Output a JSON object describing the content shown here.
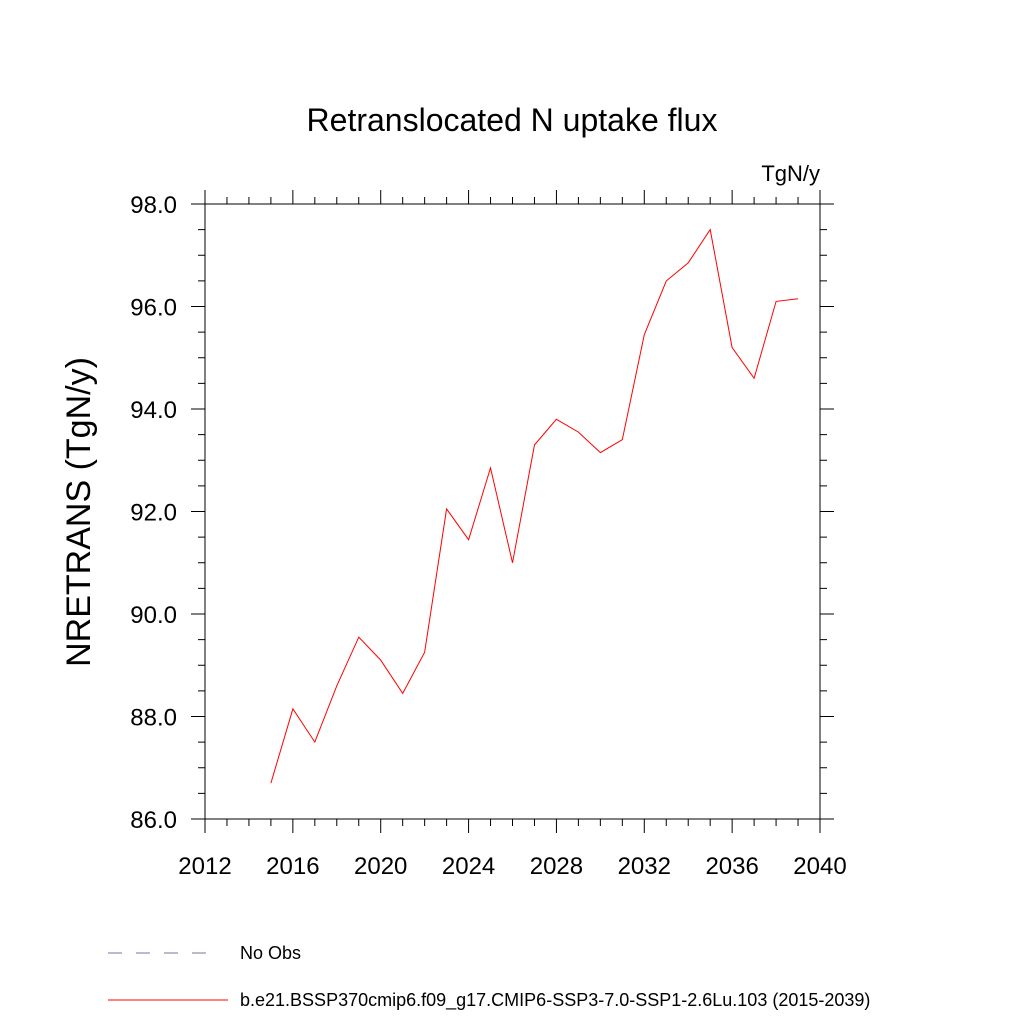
{
  "chart_data": {
    "type": "line",
    "title": "Retranslocated N uptake flux",
    "units": "TgN/y",
    "ylabel": "NRETRANS  (TgN/y)",
    "xlabel": "",
    "xlim": [
      2012,
      2040
    ],
    "ylim": [
      86.0,
      98.0
    ],
    "xticks": [
      "2012",
      "2016",
      "2020",
      "2024",
      "2028",
      "2032",
      "2036",
      "2040"
    ],
    "yticks": [
      "86.0",
      "88.0",
      "90.0",
      "92.0",
      "94.0",
      "96.0",
      "98.0"
    ],
    "grid": false,
    "legend_position": "bottom",
    "series": [
      {
        "name": "b.e21.BSSP370cmip6.f09_g17.CMIP6-SSP3-7.0-SSP1-2.6Lu.103 (2015-2039)",
        "color": "#ff0000",
        "style": "solid",
        "x": [
          2015,
          2016,
          2017,
          2018,
          2019,
          2020,
          2021,
          2022,
          2023,
          2024,
          2025,
          2026,
          2027,
          2028,
          2029,
          2030,
          2031,
          2032,
          2033,
          2034,
          2035,
          2036,
          2037,
          2038,
          2039
        ],
        "y": [
          86.7,
          88.15,
          87.5,
          88.6,
          89.55,
          89.1,
          88.45,
          89.25,
          92.05,
          91.45,
          92.85,
          91.0,
          93.3,
          93.8,
          93.55,
          93.15,
          93.4,
          95.45,
          96.5,
          96.85,
          97.5,
          95.2,
          94.6,
          96.1,
          96.15
        ]
      }
    ],
    "legend": [
      {
        "label": "No Obs",
        "color": "#7f6faa",
        "style": "dashed"
      },
      {
        "label": "b.e21.BSSP370cmip6.f09_g17.CMIP6-SSP3-7.0-SSP1-2.6Lu.103 (2015-2039)",
        "color": "#ff0000",
        "style": "solid"
      }
    ]
  }
}
